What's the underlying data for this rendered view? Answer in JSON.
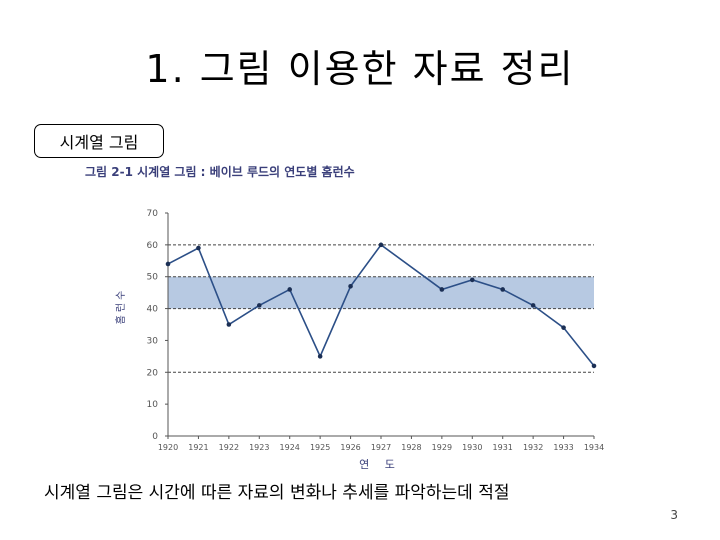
{
  "slide": {
    "title": "1. 그림 이용한 자료 정리",
    "label": "시계열 그림",
    "caption": "시계열 그림은 시간에 따른 자료의 변화나 추세를 파악하는데 적절",
    "page_number": "3"
  },
  "chart_data": {
    "type": "line",
    "title": "그림 2-1  시계열 그림 : 베이브 루드의 연도별 홈런수",
    "xlabel": "연 도",
    "ylabel": "홈런수",
    "x": [
      "1920",
      "1921",
      "1922",
      "1923",
      "1924",
      "1925",
      "1926",
      "1927",
      "1928",
      "1929",
      "1930",
      "1931",
      "1932",
      "1933",
      "1934"
    ],
    "series": [
      {
        "values": [
          54,
          59,
          35,
          41,
          46,
          25,
          47,
          60,
          null,
          46,
          49,
          46,
          41,
          34,
          22
        ]
      }
    ],
    "yticks": [
      "0",
      "10",
      "20",
      "30",
      "40",
      "50",
      "60",
      "70"
    ],
    "ylim": [
      0,
      70
    ],
    "band": {
      "from": 40,
      "to": 50,
      "color": "#b7c9e2"
    },
    "dashed_lines": [
      20,
      40,
      50,
      60
    ],
    "line_color": "#2c4f87",
    "axis_color": "#555555"
  }
}
